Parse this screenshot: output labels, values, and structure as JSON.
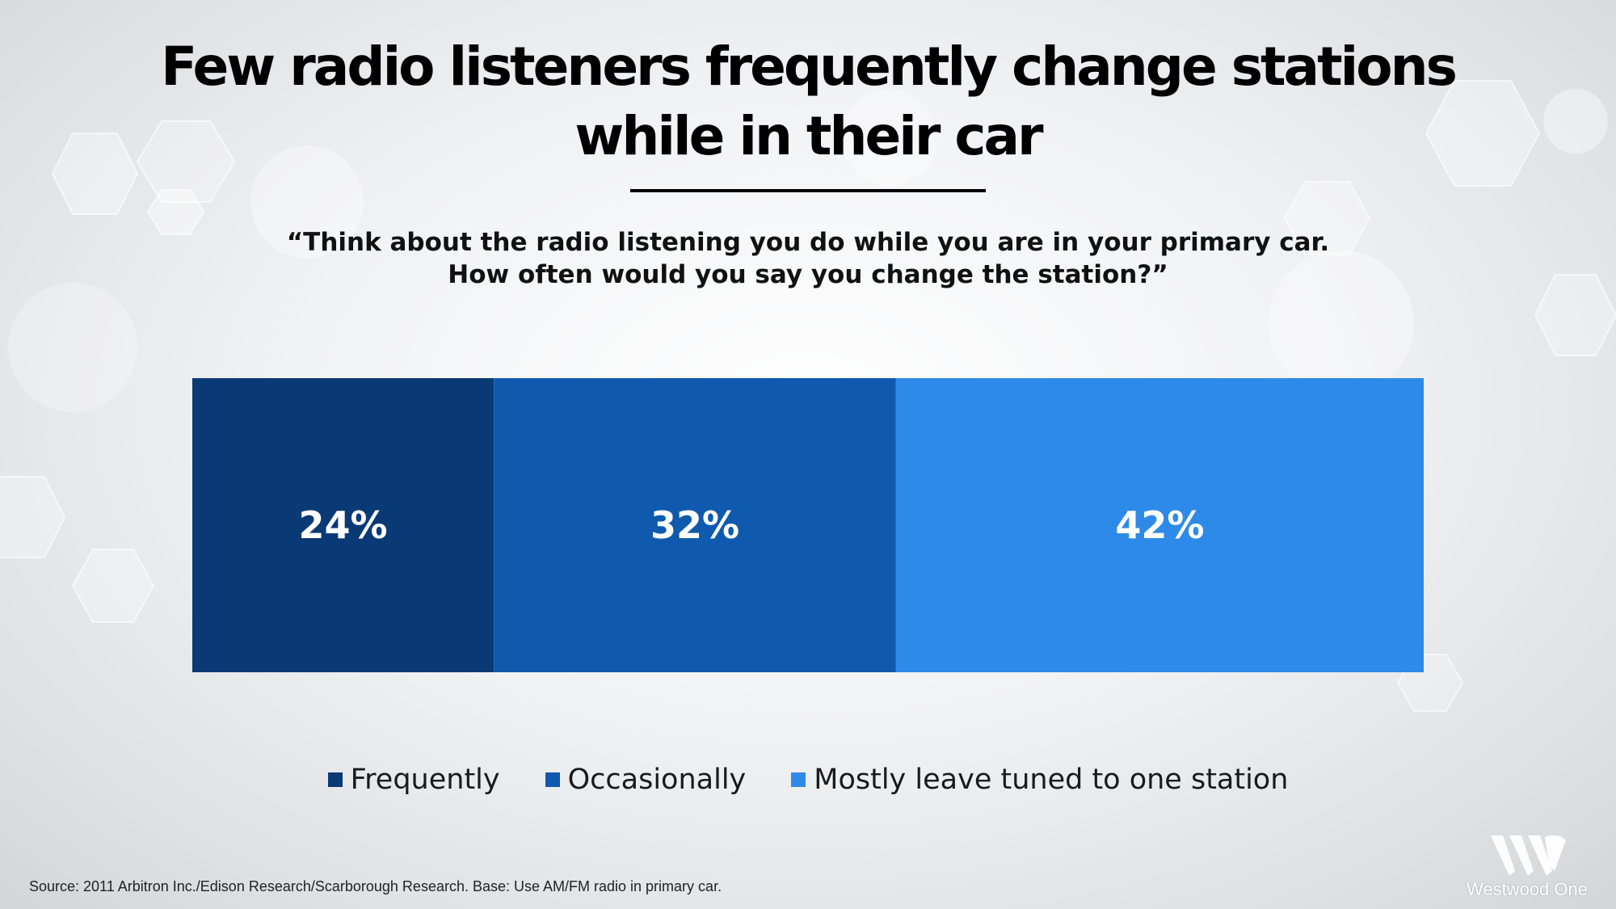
{
  "header": {
    "title": "Few radio listeners frequently change stations\nwhile in their car",
    "question": "“Think about the radio listening you do while you are in your primary car.\nHow often would you say you change the station?”"
  },
  "chart_data": {
    "type": "bar",
    "orientation": "horizontal",
    "stacked": true,
    "categories": [
      ""
    ],
    "series": [
      {
        "name": "Frequently",
        "values": [
          24
        ],
        "label": "24%",
        "color": "#0a3a75"
      },
      {
        "name": "Occasionally",
        "values": [
          32
        ],
        "label": "32%",
        "color": "#0f5aae"
      },
      {
        "name": "Mostly leave tuned to one station",
        "values": [
          42
        ],
        "label": "42%",
        "color": "#2e8ae8"
      }
    ],
    "xlim": [
      0,
      98
    ],
    "legend_position": "bottom",
    "grid": false
  },
  "footer": {
    "source": "Source: 2011 Arbitron Inc./Edison Research/Scarborough Research. Base: Use AM/FM radio in primary car.",
    "logo_text": "Westwood One"
  }
}
